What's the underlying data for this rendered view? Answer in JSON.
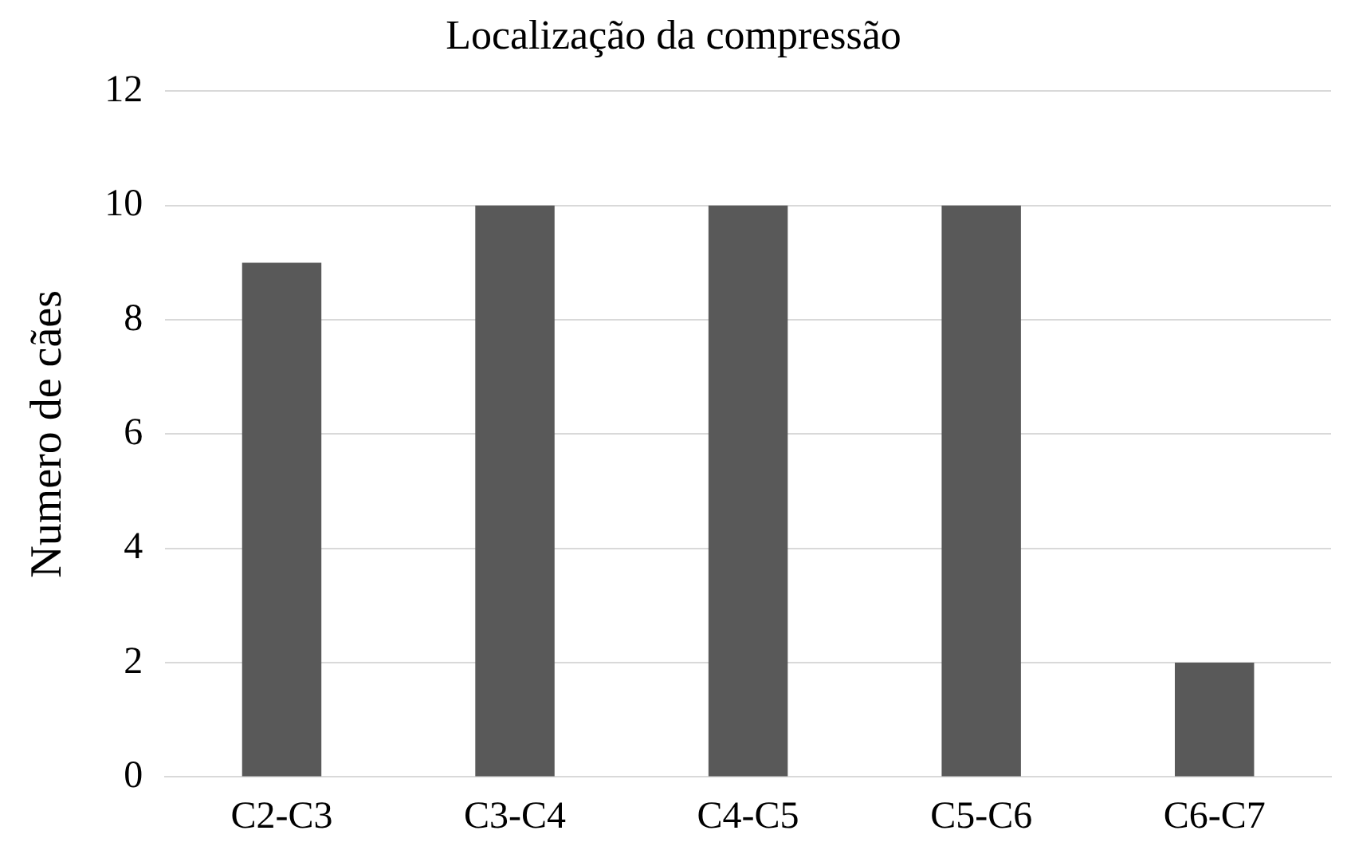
{
  "chart_data": {
    "type": "bar",
    "title": "Localização da compressão",
    "ylabel": "Numero de cães",
    "categories": [
      "C2-C3",
      "C3-C4",
      "C4-C5",
      "C5-C6",
      "C6-C7"
    ],
    "values": [
      9,
      10,
      10,
      10,
      2
    ],
    "color": "#595959",
    "ylim": [
      0,
      12
    ],
    "yticks": [
      0,
      2,
      4,
      6,
      8,
      10,
      12
    ],
    "grid": "y",
    "legend": false
  }
}
